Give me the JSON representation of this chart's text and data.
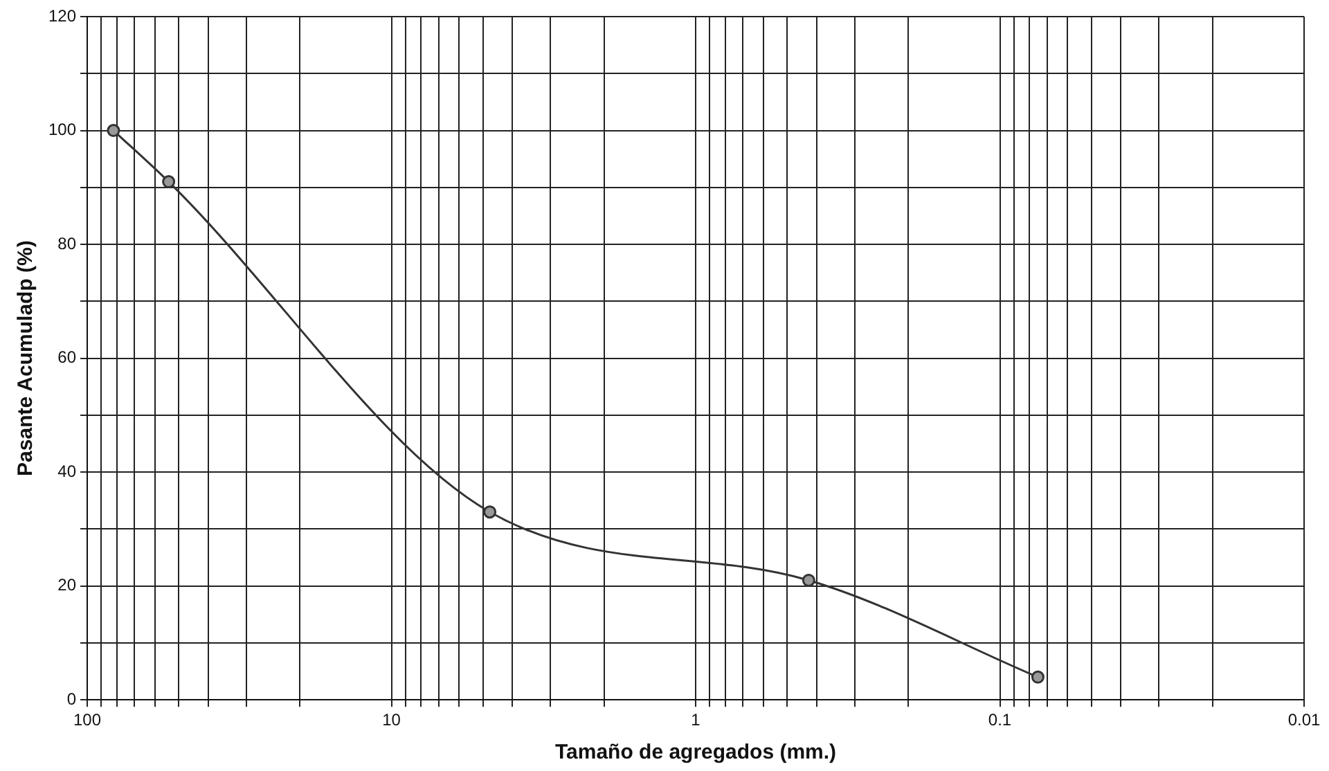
{
  "chart_data": {
    "type": "line",
    "xlabel": "Tamaño de agregados (mm.)",
    "ylabel": "Pasante Acumuladp (%)",
    "log": "x",
    "xlim": [
      100,
      0.01
    ],
    "xticks": [
      100,
      {
        "value": 90,
        "label": null
      },
      {
        "value": 80,
        "label": null
      },
      {
        "value": 70,
        "label": null
      },
      {
        "value": 60,
        "label": null
      },
      {
        "value": 50,
        "label": null
      },
      {
        "value": 40,
        "label": null
      },
      {
        "value": 30,
        "label": null
      },
      {
        "value": 20,
        "label": null
      },
      10,
      {
        "value": 9,
        "label": null
      },
      {
        "value": 8,
        "label": null
      },
      {
        "value": 7,
        "label": null
      },
      {
        "value": 6,
        "label": null
      },
      {
        "value": 5,
        "label": null
      },
      {
        "value": 4,
        "label": null
      },
      {
        "value": 3,
        "label": null
      },
      {
        "value": 2,
        "label": null
      },
      1,
      {
        "value": 0.9,
        "label": null
      },
      {
        "value": 0.8,
        "label": null
      },
      {
        "value": 0.7,
        "label": null
      },
      {
        "value": 0.6,
        "label": null
      },
      {
        "value": 0.5,
        "label": null
      },
      {
        "value": 0.4,
        "label": null
      },
      {
        "value": 0.3,
        "label": null
      },
      {
        "value": 0.2,
        "label": null
      },
      0.1,
      {
        "value": 0.09,
        "label": null
      },
      {
        "value": 0.08,
        "label": null
      },
      {
        "value": 0.07,
        "label": null
      },
      {
        "value": 0.06,
        "label": null
      },
      {
        "value": 0.05,
        "label": null
      },
      {
        "value": 0.04,
        "label": null
      },
      {
        "value": 0.03,
        "label": null
      },
      {
        "value": 0.02,
        "label": null
      },
      0.01
    ],
    "ylim": [
      0,
      120
    ],
    "yticks": [
      0,
      {
        "value": 10,
        "label": null
      },
      20,
      {
        "value": 30,
        "label": null
      },
      40,
      {
        "value": 50,
        "label": null
      },
      60,
      {
        "value": 70,
        "label": null
      },
      80,
      {
        "value": 90,
        "label": null
      },
      100,
      {
        "value": 110,
        "label": null
      },
      120
    ],
    "grid": true,
    "legend": false,
    "marker": "circle",
    "line_style": "solid",
    "x": [
      82,
      54,
      4.75,
      0.425,
      0.075
    ],
    "series": [
      {
        "color": "#333333",
        "values": [
          100,
          91,
          33,
          21,
          4
        ]
      }
    ]
  }
}
